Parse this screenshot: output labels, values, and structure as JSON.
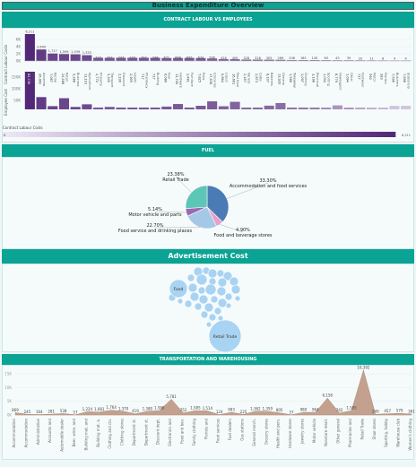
{
  "title": "Business Expenditure Overview",
  "contract": {
    "section_title": "CONTRACT LABOUR VS EMPLOYEES",
    "ylabel_top": "Contract Labour Costs",
    "ylabel_bottom": "Employee Cost",
    "top_ticks": [
      "6K",
      "4K",
      "2K",
      "0K"
    ],
    "bottom_ticks": [
      "150K",
      "100K",
      "50K"
    ],
    "categories": [
      "Mining",
      "Accomm.",
      "Rental",
      "Retail",
      "Business",
      "Agriculture",
      "Property",
      "Transport",
      "Discount",
      "Health",
      "Pharmacy",
      "Building",
      "Fuel",
      "Hardware",
      "Furniture",
      "Pubs",
      "Groceries",
      "Liquor",
      "Fast food",
      "Variety",
      "Cafes",
      "Bakeries",
      "General",
      "Takeaway",
      "Clothing",
      "Electrical",
      "Sporting",
      "Newsagent",
      "Other",
      "Footwear",
      "Motor",
      "Florists",
      "Butchers",
      "Stationery"
    ],
    "labour_values": [
      6211,
      2649,
      1717,
      1599,
      1539,
      1333,
      737,
      737,
      737,
      737,
      737,
      736,
      671,
      688,
      695,
      674,
      566,
      426,
      409,
      328,
      318,
      305,
      269,
      208,
      165,
      145,
      63,
      43,
      39,
      20,
      11,
      8,
      4,
      4
    ],
    "labour_labels": [
      "6,211",
      "2,649",
      "1,717",
      "1,599",
      "1,539",
      "1,333",
      "737",
      "737",
      "737",
      "737",
      "737",
      "736",
      "671",
      "688",
      "695",
      "674",
      "566",
      "426",
      "409",
      "328",
      "318",
      "305",
      "269",
      "208",
      "165",
      "145",
      "63",
      "43",
      "39",
      "20",
      "11",
      "8",
      "4",
      "4"
    ],
    "employee_values": [
      82736,
      26962,
      7087,
      24488,
      5288,
      11101,
      2772,
      5345,
      2236,
      2905,
      717,
      717,
      6086,
      11700,
      2481,
      7825,
      17639,
      6864,
      16601,
      2167,
      2873,
      8107,
      13920,
      1586,
      1097,
      3198,
      1034,
      8779,
      1094,
      717,
      590,
      283,
      7596,
      7698
    ],
    "employee_labels": [
      "82,736",
      "26,962",
      "7,087",
      "24,488",
      "5,288",
      "11,101",
      "2,772",
      "5,345",
      "2,236",
      "2,905",
      "717",
      "717",
      "6,086",
      "11,700",
      "2,481",
      "7,825",
      "17,639",
      "6,864",
      "16,601",
      "2,167",
      "2,873",
      "8,107",
      "13,920",
      "1,586",
      "1,097",
      "3,198",
      "1,034",
      "8,779",
      "1,094",
      "717",
      "590",
      "283",
      "7,596",
      "7,698"
    ],
    "legend_label": "Contract Labour Costs",
    "legend_min": "0",
    "legend_max": "6,211"
  },
  "fuel": {
    "section_title": "FUEL",
    "slices": [
      {
        "label": "Accommodation and food services",
        "pct": "33.30%",
        "value": 33.3,
        "color": "#4b7bb5"
      },
      {
        "label": "Food and beverage stores",
        "pct": "4.90%",
        "value": 4.9,
        "color": "#e8a0c8"
      },
      {
        "label": "Food service and drinking places",
        "pct": "22.70%",
        "value": 22.7,
        "color": "#a5c8e6"
      },
      {
        "label": "Motor vehicle and parts",
        "pct": "5.14%",
        "value": 5.14,
        "color": "#9a6ab0"
      },
      {
        "label": "Retail Trade",
        "pct": "23.38%",
        "value": 23.38,
        "color": "#5cc7b7"
      }
    ]
  },
  "advert": {
    "section_title": "Advertisement Cost",
    "bubble_labels": [
      "Food",
      "Retail Trade"
    ]
  },
  "transport": {
    "section_title": "TRANSPORTATION AND WAREHOUSING",
    "yticks": [
      "15K",
      "10K",
      "5K",
      "0K"
    ],
    "values": [
      869,
      245,
      164,
      281,
      538,
      57,
      1224,
      1081,
      1764,
      1370,
      419,
      1380,
      1586,
      5781,
      752,
      1585,
      1514,
      124,
      993,
      225,
      1362,
      1359,
      805,
      57,
      980,
      964,
      6158,
      742,
      1585,
      16392,
      249,
      457,
      579,
      361
    ],
    "labels": [
      "869",
      "245",
      "164",
      "281",
      "538",
      "57",
      "1,224",
      "1,081",
      "1,764",
      "1,370",
      "419",
      "1,380",
      "1,586",
      "5,781",
      "752",
      "1,585",
      "1,514",
      "124",
      "993",
      "225",
      "1,362",
      "1,359",
      "805",
      "57",
      "980",
      "964",
      "6,158",
      "742",
      "1,585",
      "16,392",
      "249",
      "457",
      "579",
      "361"
    ],
    "categories": [
      "Accommodation",
      "Accommodation",
      "Administrative",
      "Accounts and",
      "Automobile dealer",
      "Beer, wine, and",
      "Building mat. and",
      "Building mat. a.",
      "Clothing and clo.",
      "Clothing stores",
      "Department st.",
      "Department st.",
      "Discount dept.",
      "Electronics and",
      "Food and bev.",
      "Family clothing",
      "Florists and",
      "Food services",
      "Fuel dealers",
      "Gas stations",
      "General merch.",
      "Grocery stores",
      "Health and pers.",
      "Hardware stores",
      "Jewelry stores",
      "Motor vehicle",
      "Nonstore retail.",
      "Other general",
      "Pharmacies and",
      "Retail Trade",
      "Shoe stores",
      "Sporting, hobby",
      "Warehouse club",
      "Women's clothing"
    ]
  }
}
